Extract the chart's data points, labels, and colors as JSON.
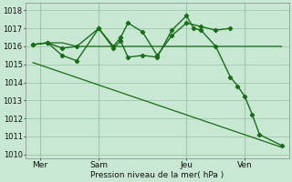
{
  "background_color": "#c8e8d4",
  "grid_color": "#a0c8a8",
  "line_color": "#1a6b1a",
  "ylabel": "Pression niveau de la mer( hPa )",
  "ylim": [
    1009.8,
    1018.4
  ],
  "yticks": [
    1010,
    1011,
    1012,
    1013,
    1014,
    1015,
    1016,
    1017,
    1018
  ],
  "xtick_labels": [
    "Mer",
    "Sam",
    "Jeu",
    "Ven"
  ],
  "xtick_positions": [
    2,
    10,
    22,
    30
  ],
  "vline_positions": [
    2,
    10,
    22,
    30
  ],
  "xlim": [
    0,
    36
  ],
  "series": [
    {
      "x": [
        1,
        3,
        5,
        7,
        10,
        12,
        14,
        16,
        18,
        20,
        22,
        24,
        26,
        28,
        30,
        32,
        35
      ],
      "y": [
        1016.1,
        1016.2,
        1016.2,
        1016.0,
        1016.0,
        1016.0,
        1016.0,
        1016.0,
        1016.0,
        1016.0,
        1016.0,
        1016.0,
        1016.0,
        1016.0,
        1016.0,
        1016.0,
        1016.0
      ],
      "marker": false,
      "linewidth": 0.9
    },
    {
      "x": [
        1,
        3,
        5,
        7,
        10,
        12,
        13,
        14,
        16,
        18,
        20,
        22,
        24,
        26,
        28
      ],
      "y": [
        1016.1,
        1016.2,
        1015.9,
        1016.0,
        1017.0,
        1016.0,
        1016.5,
        1017.3,
        1016.8,
        1015.5,
        1016.6,
        1017.3,
        1017.1,
        1016.9,
        1017.0
      ],
      "marker": true,
      "linewidth": 1.0
    },
    {
      "x": [
        1,
        3,
        5,
        7,
        10,
        12,
        13,
        14,
        16,
        18,
        20,
        22,
        23,
        24,
        26,
        28,
        29,
        30,
        31,
        32,
        35
      ],
      "y": [
        1016.1,
        1016.2,
        1015.5,
        1015.2,
        1017.0,
        1015.9,
        1016.3,
        1015.4,
        1015.5,
        1015.4,
        1016.9,
        1017.7,
        1017.0,
        1016.9,
        1016.0,
        1014.3,
        1013.8,
        1013.2,
        1012.2,
        1011.1,
        1010.5
      ],
      "marker": true,
      "linewidth": 1.0
    },
    {
      "x": [
        1,
        35
      ],
      "y": [
        1015.1,
        1010.4
      ],
      "marker": false,
      "linewidth": 0.9
    }
  ]
}
